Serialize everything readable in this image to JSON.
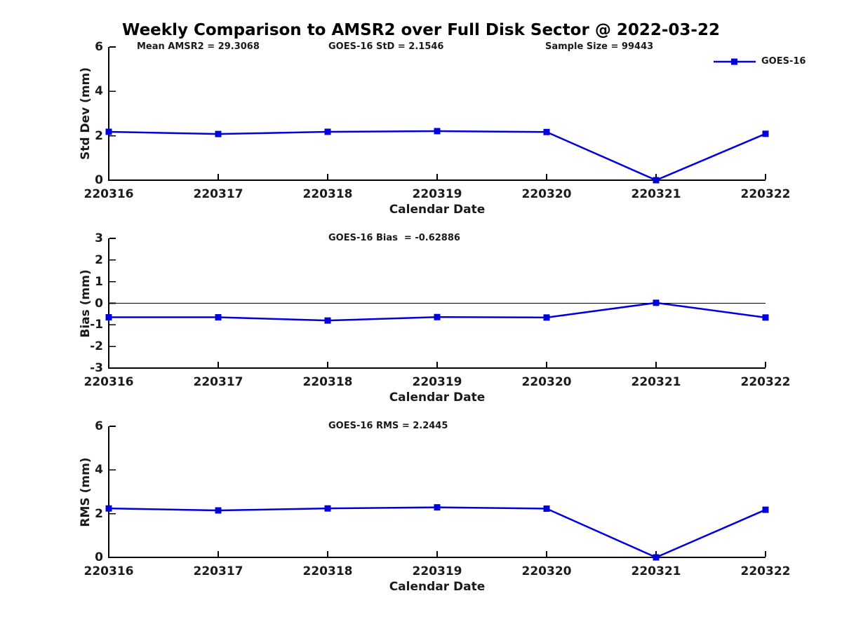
{
  "title": "Weekly Comparison to AMSR2 over Full Disk Sector @ 2022-03-22",
  "legend": {
    "label": "GOES-16"
  },
  "colors": {
    "series": "#0000dd",
    "axis": "#000000",
    "text": "#1a1a1a"
  },
  "chart_data": [
    {
      "type": "line",
      "name": "std-dev",
      "annotations": [
        "Mean AMSR2 = 29.3068",
        "GOES-16 StD = 2.1546",
        "Sample Size = 99443"
      ],
      "categories": [
        "220316",
        "220317",
        "220318",
        "220319",
        "220320",
        "220321",
        "220322"
      ],
      "series": [
        {
          "name": "GOES-16",
          "values": [
            2.18,
            2.08,
            2.18,
            2.21,
            2.17,
            0.0,
            2.09
          ]
        }
      ],
      "xlabel": "Calendar Date",
      "ylabel": "Std Dev (mm)",
      "ylim": [
        0,
        6
      ],
      "yticks": [
        0,
        2,
        4,
        6
      ],
      "zero_line": false,
      "grid": false,
      "legend_position": "top-right"
    },
    {
      "type": "line",
      "name": "bias",
      "annotations": [
        "GOES-16 Bias  = -0.62886"
      ],
      "categories": [
        "220316",
        "220317",
        "220318",
        "220319",
        "220320",
        "220321",
        "220322"
      ],
      "series": [
        {
          "name": "GOES-16",
          "values": [
            -0.65,
            -0.65,
            -0.8,
            -0.64,
            -0.66,
            0.02,
            -0.66
          ]
        }
      ],
      "xlabel": "Calendar Date",
      "ylabel": "Bias (mm)",
      "ylim": [
        -3,
        3
      ],
      "yticks": [
        -3,
        -2,
        -1,
        0,
        1,
        2,
        3
      ],
      "zero_line": true,
      "grid": false
    },
    {
      "type": "line",
      "name": "rms",
      "annotations": [
        "GOES-16 RMS = 2.2445"
      ],
      "categories": [
        "220316",
        "220317",
        "220318",
        "220319",
        "220320",
        "220321",
        "220322"
      ],
      "series": [
        {
          "name": "GOES-16",
          "values": [
            2.24,
            2.15,
            2.24,
            2.29,
            2.23,
            0.0,
            2.18
          ]
        }
      ],
      "xlabel": "Calendar Date",
      "ylabel": "RMS (mm)",
      "ylim": [
        0,
        6
      ],
      "yticks": [
        0,
        2,
        4,
        6
      ],
      "zero_line": false,
      "grid": false
    }
  ]
}
